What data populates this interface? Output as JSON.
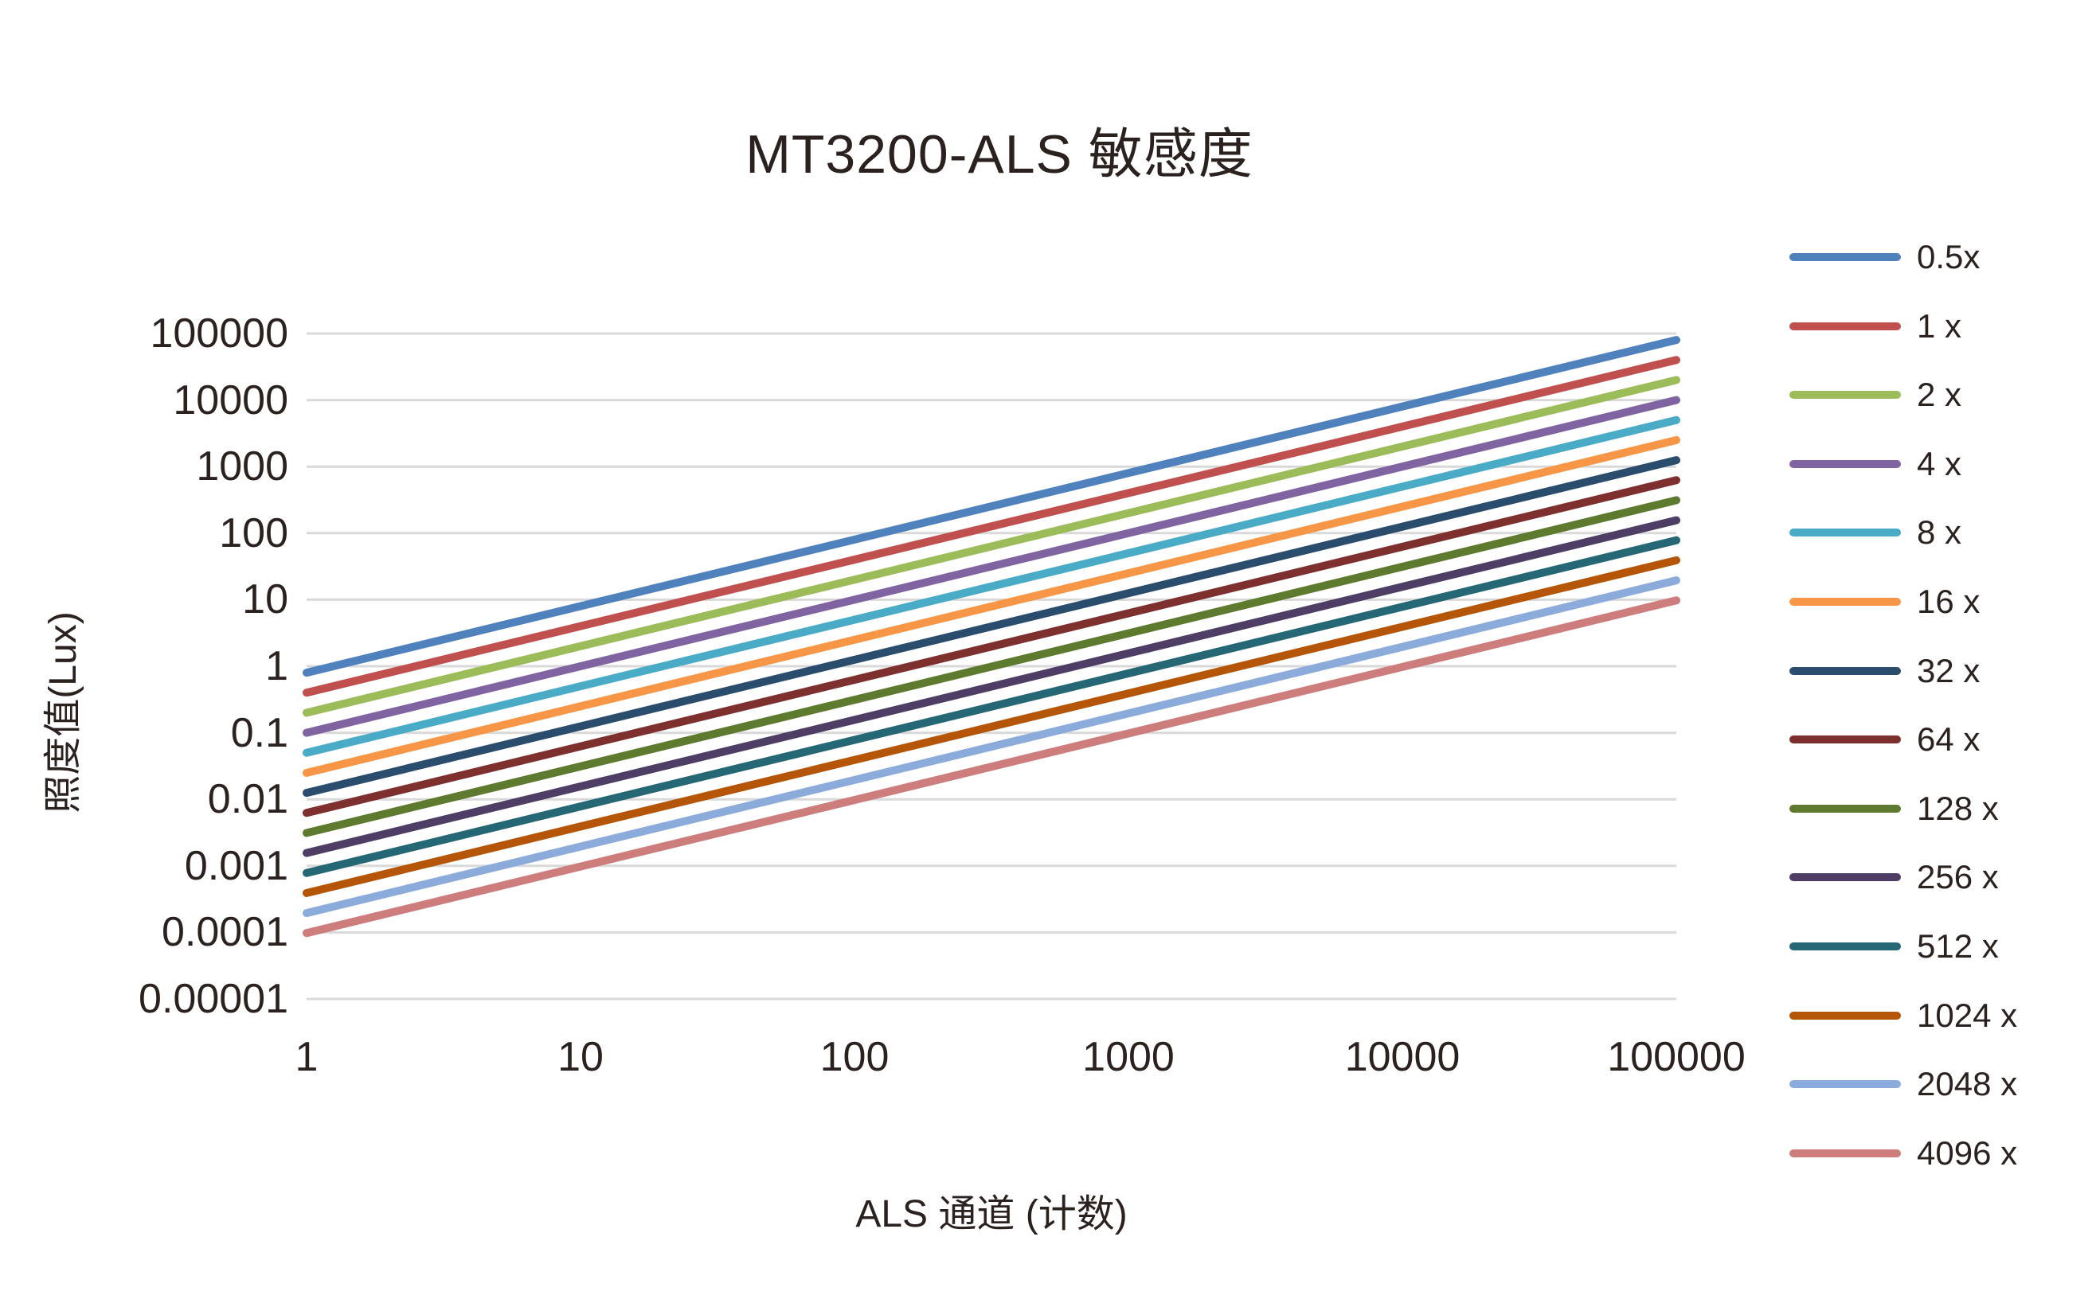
{
  "chart_data": {
    "type": "line",
    "title": "MT3200-ALS 敏感度",
    "xlabel": "ALS 通道 (计数)",
    "ylabel": "照度值(Lux)",
    "x_scale": "log",
    "y_scale": "log",
    "xlim": [
      1,
      100000
    ],
    "ylim": [
      1e-05,
      100000
    ],
    "grid": true,
    "grid_color": "#D9D9D9",
    "background": "#FFFFFF",
    "text_color": "#2B2220",
    "legend_position": "right",
    "x_ticks": [
      1,
      10,
      100,
      1000,
      10000,
      100000
    ],
    "x_tick_labels": [
      "1",
      "10",
      "100",
      "1000",
      "10000",
      "100000"
    ],
    "y_ticks": [
      100000,
      10000,
      1000,
      100,
      10,
      1,
      0.1,
      0.01,
      0.001,
      0.0001,
      1e-05
    ],
    "y_tick_labels": [
      "100000",
      "10000",
      "1000",
      "100",
      "10",
      "1",
      "0.1",
      "0.01",
      "0.001",
      "0.0001",
      "0.00001"
    ],
    "series": [
      {
        "name": "0.5x",
        "color": "#4F81BD",
        "lux_per_count": 0.8,
        "x": [
          1,
          100000
        ],
        "y": [
          0.8,
          80000
        ]
      },
      {
        "name": "1 x",
        "color": "#C0504D",
        "lux_per_count": 0.4,
        "x": [
          1,
          100000
        ],
        "y": [
          0.4,
          40000
        ]
      },
      {
        "name": "2 x",
        "color": "#9CBB59",
        "lux_per_count": 0.2,
        "x": [
          1,
          100000
        ],
        "y": [
          0.2,
          20000
        ]
      },
      {
        "name": "4 x",
        "color": "#8064A2",
        "lux_per_count": 0.1,
        "x": [
          1,
          100000
        ],
        "y": [
          0.1,
          10000
        ]
      },
      {
        "name": "8 x",
        "color": "#4AABC6",
        "lux_per_count": 0.05,
        "x": [
          1,
          100000
        ],
        "y": [
          0.05,
          5000
        ]
      },
      {
        "name": "16 x",
        "color": "#F79646",
        "lux_per_count": 0.025,
        "x": [
          1,
          100000
        ],
        "y": [
          0.025,
          2500
        ]
      },
      {
        "name": "32 x",
        "color": "#2A4D6E",
        "lux_per_count": 0.0125,
        "x": [
          1,
          100000
        ],
        "y": [
          0.0125,
          1250
        ]
      },
      {
        "name": "64 x",
        "color": "#7E302E",
        "lux_per_count": 0.00625,
        "x": [
          1,
          100000
        ],
        "y": [
          0.00625,
          625
        ]
      },
      {
        "name": "128 x",
        "color": "#5D7A2F",
        "lux_per_count": 0.003125,
        "x": [
          1,
          100000
        ],
        "y": [
          0.003125,
          312.5
        ]
      },
      {
        "name": "256 x",
        "color": "#4E3E66",
        "lux_per_count": 0.0015625,
        "x": [
          1,
          100000
        ],
        "y": [
          0.0015625,
          156.25
        ]
      },
      {
        "name": "512 x",
        "color": "#266775",
        "lux_per_count": 0.00078125,
        "x": [
          1,
          100000
        ],
        "y": [
          0.00078125,
          78.125
        ]
      },
      {
        "name": "1024 x",
        "color": "#B45508",
        "lux_per_count": 0.000390625,
        "x": [
          1,
          100000
        ],
        "y": [
          0.000390625,
          39.0625
        ]
      },
      {
        "name": "2048 x",
        "color": "#8BACDB",
        "lux_per_count": 0.0001953125,
        "x": [
          1,
          100000
        ],
        "y": [
          0.0001953125,
          19.53125
        ]
      },
      {
        "name": "4096 x",
        "color": "#CD7D7C",
        "lux_per_count": 9.765625e-05,
        "x": [
          1,
          100000
        ],
        "y": [
          9.765625e-05,
          9.765625
        ]
      }
    ]
  }
}
